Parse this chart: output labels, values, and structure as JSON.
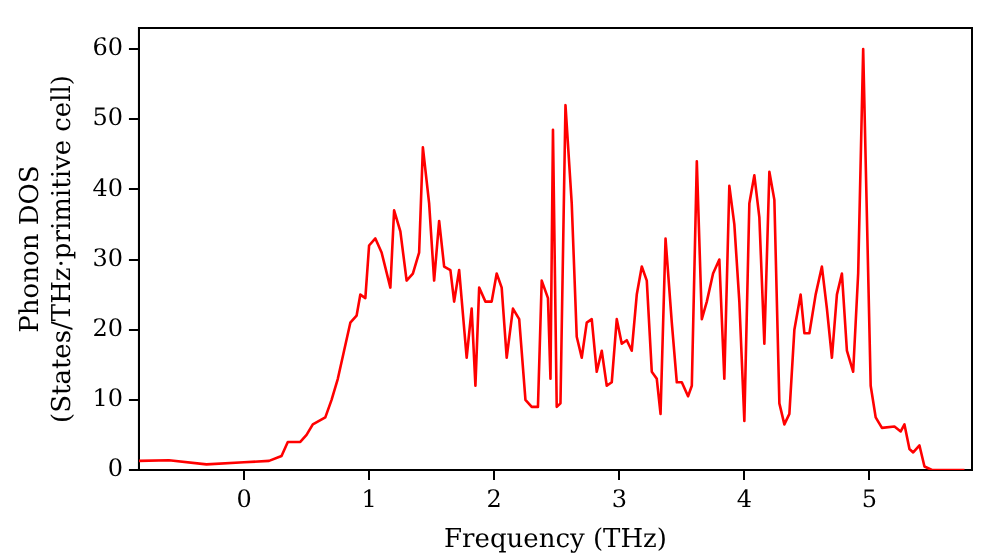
{
  "chart_data": {
    "type": "line",
    "xlabel": "Frequency (THz)",
    "ylabel": "Phonon DOS\n(States/THz·primitive cell)",
    "xlim": [
      -0.84,
      5.82
    ],
    "ylim": [
      0,
      63
    ],
    "xticks": [
      0,
      1,
      2,
      3,
      4,
      5
    ],
    "yticks": [
      0,
      10,
      20,
      30,
      40,
      50,
      60
    ],
    "grid": false,
    "legend": false,
    "marker": "none",
    "line_style": "solid",
    "series": [
      {
        "color": "#ff0000",
        "x": [
          -0.84,
          -0.6,
          -0.3,
          0,
          0.2,
          0.3,
          0.35,
          0.45,
          0.5,
          0.55,
          0.65,
          0.7,
          0.75,
          0.8,
          0.85,
          0.9,
          0.93,
          0.97,
          1.0,
          1.05,
          1.1,
          1.17,
          1.2,
          1.25,
          1.3,
          1.35,
          1.4,
          1.43,
          1.48,
          1.52,
          1.56,
          1.6,
          1.65,
          1.68,
          1.72,
          1.78,
          1.82,
          1.85,
          1.88,
          1.93,
          1.98,
          2.02,
          2.06,
          2.1,
          2.15,
          2.2,
          2.25,
          2.3,
          2.35,
          2.38,
          2.43,
          2.45,
          2.47,
          2.5,
          2.53,
          2.57,
          2.62,
          2.66,
          2.7,
          2.74,
          2.78,
          2.82,
          2.86,
          2.9,
          2.94,
          2.98,
          3.02,
          3.06,
          3.1,
          3.14,
          3.18,
          3.22,
          3.26,
          3.3,
          3.33,
          3.37,
          3.42,
          3.46,
          3.5,
          3.55,
          3.58,
          3.62,
          3.66,
          3.7,
          3.75,
          3.8,
          3.84,
          3.88,
          3.92,
          3.96,
          4.0,
          4.04,
          4.08,
          4.12,
          4.16,
          4.2,
          4.24,
          4.28,
          4.32,
          4.36,
          4.4,
          4.45,
          4.48,
          4.52,
          4.57,
          4.62,
          4.66,
          4.7,
          4.74,
          4.78,
          4.82,
          4.87,
          4.91,
          4.95,
          5.01,
          5.05,
          5.1,
          5.2,
          5.25,
          5.28,
          5.32,
          5.35,
          5.4,
          5.44,
          5.5,
          5.76
        ],
        "values": [
          1.3,
          1.4,
          0.8,
          1.1,
          1.3,
          2,
          4,
          4,
          5,
          6.5,
          7.5,
          10,
          13,
          17,
          21,
          22,
          25,
          24.5,
          32,
          33,
          31,
          26,
          37,
          34,
          27,
          28,
          31,
          46,
          38,
          27,
          35.5,
          29,
          28.5,
          24,
          28.5,
          16,
          23,
          12,
          26,
          24,
          24,
          28,
          26,
          16,
          23,
          21.5,
          10,
          9,
          9,
          27,
          24.5,
          13,
          48.5,
          9,
          9.5,
          52,
          38,
          19,
          16,
          21,
          21.5,
          14,
          17,
          12,
          12.5,
          21.5,
          18,
          18.5,
          17,
          25,
          29,
          27,
          14,
          13,
          8,
          33,
          21,
          12.5,
          12.5,
          10.5,
          12,
          44,
          21.5,
          24,
          28,
          30,
          13,
          40.5,
          35,
          24,
          7,
          38,
          42,
          36,
          18,
          42.5,
          38.5,
          9.5,
          6.5,
          8,
          20,
          25,
          19.5,
          19.5,
          25,
          29,
          23,
          16,
          25,
          28,
          17,
          14,
          28,
          60,
          12,
          7.5,
          6,
          6.2,
          5.5,
          6.5,
          3,
          2.5,
          3.5,
          0.5,
          0,
          0
        ]
      }
    ]
  }
}
